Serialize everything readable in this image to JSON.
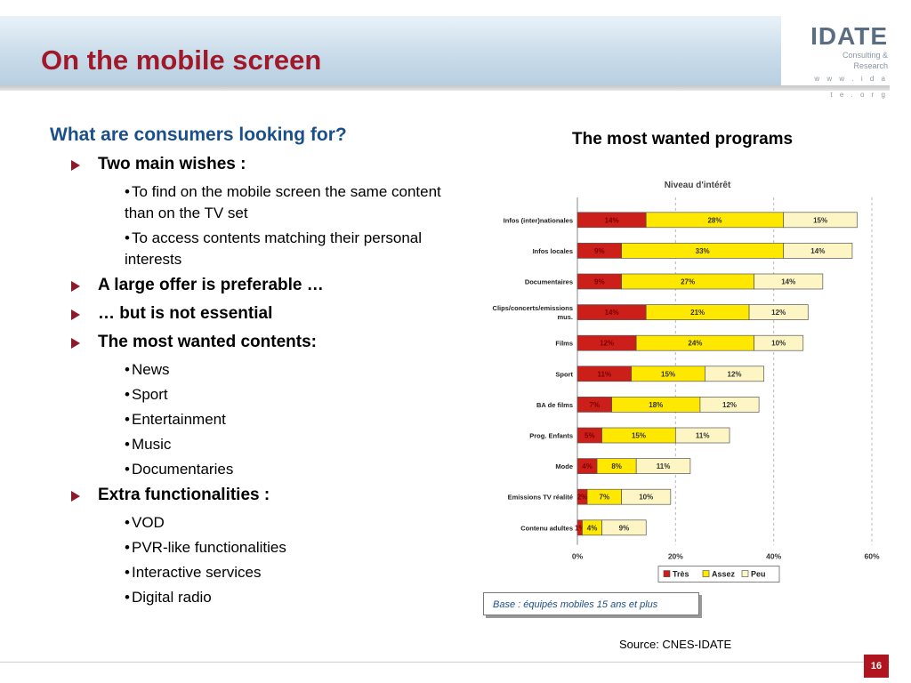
{
  "slide": {
    "title": "On the mobile screen",
    "page_number": "16"
  },
  "logo": {
    "name": "IDATE",
    "tagline": "Consulting & Research",
    "url": "w w w . i d a t e . o r g"
  },
  "left": {
    "heading": "What are consumers looking for?",
    "bullets": [
      {
        "text": "Two main wishes :",
        "subs": [
          "To find on the mobile screen the same content than on the TV set",
          "To access contents matching their personal interests"
        ]
      },
      {
        "text": "A large offer is preferable …",
        "subs": []
      },
      {
        "text": "… but is not essential",
        "subs": []
      },
      {
        "text": "The most wanted contents:",
        "subs": [
          "News",
          "Sport",
          "Entertainment",
          "Music",
          "Documentaries"
        ]
      },
      {
        "text": "Extra functionalities :",
        "subs": [
          "VOD",
          "PVR-like functionalities",
          "Interactive services",
          "Digital radio"
        ]
      }
    ]
  },
  "chart": {
    "heading": "The most wanted programs",
    "base_note": "Base : équipés mobiles 15 ans et plus",
    "source": "Source: CNES-IDATE"
  },
  "chart_data": {
    "type": "bar",
    "orientation": "horizontal",
    "stacked": true,
    "title": "Niveau d'intérêt",
    "categories": [
      "Infos (inter)nationales",
      "Infos locales",
      "Documentaires",
      "Clips/concerts/emissions mus.",
      "Films",
      "Sport",
      "BA de films",
      "Prog. Enfants",
      "Mode",
      "Emissions TV réalité",
      "Contenu adultes"
    ],
    "series": [
      {
        "name": "Très",
        "color": "#cc1f1a",
        "values": [
          14,
          9,
          9,
          14,
          12,
          11,
          7,
          5,
          4,
          2,
          1
        ]
      },
      {
        "name": "Assez",
        "color": "#ffe800",
        "values": [
          28,
          33,
          27,
          21,
          24,
          15,
          18,
          15,
          8,
          7,
          4
        ]
      },
      {
        "name": "Peu",
        "color": "#fdf6c4",
        "values": [
          15,
          14,
          14,
          12,
          10,
          12,
          12,
          11,
          11,
          10,
          9
        ]
      }
    ],
    "data_labels": [
      [
        "14%",
        "28%",
        "15%"
      ],
      [
        "9%",
        "33%",
        "14%"
      ],
      [
        "9%",
        "27%",
        "14%"
      ],
      [
        "14%",
        "21%",
        "12%"
      ],
      [
        "12%",
        "24%",
        "10%"
      ],
      [
        "11%",
        "15%",
        "12%"
      ],
      [
        "7%",
        "18%",
        "12%"
      ],
      [
        "5%",
        "15%",
        "11%"
      ],
      [
        "4%",
        "8%",
        "11%"
      ],
      [
        "2%",
        "7%",
        "10%"
      ],
      [
        "1%",
        "4%",
        "9%"
      ]
    ],
    "x_ticks": [
      "0%",
      "20%",
      "40%",
      "60%"
    ],
    "xlim": [
      0,
      60
    ],
    "grid": "vertical dashed",
    "legend": "bottom-right"
  }
}
